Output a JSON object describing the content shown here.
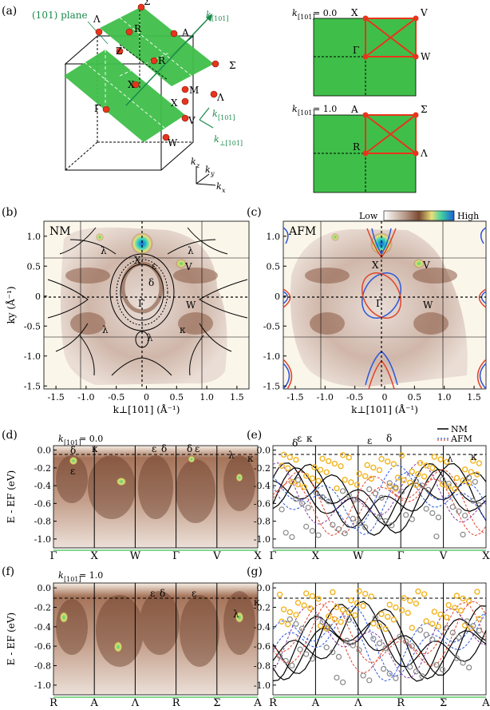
{
  "colors": {
    "green": "#3fbf4a",
    "red": "#e8341c",
    "arpes_dark": "#7a4a32",
    "arpes_bg": "#fbf6ea",
    "nm_line": "#000000",
    "afm_blue": "#2d58d8",
    "afm_red": "#e0442a",
    "afm_purple": "#8a3aa0",
    "orange_marker": "#f2b41e",
    "gray_marker": "#888888",
    "teal_text": "#1a8a6a"
  },
  "panels": {
    "a": {
      "label": "(a)",
      "plane_label": "(101) plane",
      "k101": "k",
      "k101_sub": "[101]",
      "kperp": "k",
      "kperp_sub": "⊥[101]",
      "kx": "k",
      "kx_sub": "x",
      "ky": "k",
      "ky_sub": "y",
      "kz": "k",
      "kz_sub": "z",
      "points": [
        "Σ",
        "Λ",
        "R",
        "A",
        "Z",
        "R",
        "Σ",
        "X",
        "M",
        "Γ",
        "X",
        "Λ",
        "V",
        "W"
      ],
      "slice0": {
        "title": "k",
        "sub": "[101]",
        "val": " = 0.0",
        "corners": [
          "X",
          "V",
          "Γ",
          "W"
        ]
      },
      "slice1": {
        "title": "k",
        "sub": "[101]",
        "val": " = 1.0",
        "corners": [
          "A",
          "Σ",
          "R",
          "Λ"
        ]
      }
    },
    "b": {
      "label": "(b)",
      "mode": "NM",
      "points": [
        "X",
        "V",
        "δ",
        "ε",
        "λ",
        "λ",
        "Γ",
        "W",
        "λ",
        "κ",
        "λ"
      ]
    },
    "c": {
      "label": "(c)",
      "mode": "AFM",
      "colorbar_low": "Low",
      "colorbar_high": "High",
      "points": [
        "X",
        "V",
        "Γ",
        "W"
      ]
    },
    "d": {
      "label": "(d)",
      "title": "k",
      "sub": "[101]",
      "val": " = 0.0",
      "labels": [
        "δ",
        "ε",
        "κ",
        "ε",
        "δ",
        "δ",
        "ε",
        "λ",
        "κ"
      ]
    },
    "e": {
      "label": "(e)",
      "legend_nm": "NM",
      "legend_afm": "AFM",
      "labels": [
        "δ",
        "ε",
        "κ",
        "ε",
        "δ",
        "λ",
        "κ"
      ]
    },
    "f": {
      "label": "(f)",
      "title": "k",
      "sub": "[101]",
      "val": " = 1.0",
      "labels": [
        "ε",
        "δ",
        "ε",
        "λ",
        "κ"
      ]
    },
    "g": {
      "label": "(g)"
    }
  },
  "chart_data": [
    {
      "type": "heatmap",
      "title": "NM",
      "xlabel": "k⊥[101] (Å⁻¹)",
      "ylabel": "ky (Å⁻¹)",
      "xlim": [
        -1.7,
        1.7
      ],
      "ylim": [
        -1.55,
        1.25
      ],
      "xticks": [
        "-1.5",
        "-1.0",
        "-0.5",
        "0",
        "0.5",
        "1.0",
        "1.5"
      ],
      "yticks": [
        "1.0",
        "0.5",
        "0",
        "-0.5",
        "-1.0",
        "-1.5"
      ]
    },
    {
      "type": "heatmap",
      "title": "AFM",
      "xlabel": "k⊥[101] (Å⁻¹)",
      "xlim": [
        -1.7,
        1.7
      ],
      "ylim": [
        -1.55,
        1.25
      ],
      "xticks": [
        "-1.5",
        "-1.0",
        "-0.5",
        "0",
        "0.5",
        "1.0",
        "1.5"
      ],
      "yticks": [
        "1.0",
        "0.5",
        "0",
        "-0.5",
        "-1.0",
        "-1.5"
      ]
    },
    {
      "type": "heatmap",
      "title": "k[101] = 0.0",
      "ylabel": "E - EF (eV)",
      "ylim": [
        -1.1,
        0.05
      ],
      "yticks": [
        "0.0",
        "-0.2",
        "-0.4",
        "-0.6",
        "-0.8",
        "-1.0"
      ],
      "path": [
        "Γ",
        "X",
        "W",
        "Γ",
        "V",
        "X"
      ]
    },
    {
      "type": "line",
      "ylim": [
        -1.1,
        0.05
      ],
      "yticks": [
        "0.0",
        "-0.2",
        "-0.4",
        "-0.6",
        "-0.8",
        "-1.0"
      ],
      "path": [
        "Γ",
        "X",
        "W",
        "Γ",
        "V",
        "X"
      ],
      "series": [
        {
          "name": "NM"
        },
        {
          "name": "AFM"
        }
      ]
    },
    {
      "type": "heatmap",
      "title": "k[101] = 1.0",
      "ylabel": "E - EF (eV)",
      "ylim": [
        -1.1,
        0.05
      ],
      "yticks": [
        "0.0",
        "-0.2",
        "-0.4",
        "-0.6",
        "-0.8",
        "-1.0"
      ],
      "path": [
        "R",
        "A",
        "Λ",
        "R",
        "Σ",
        "A"
      ]
    },
    {
      "type": "line",
      "ylim": [
        -1.1,
        0.05
      ],
      "yticks": [
        "0.0",
        "-0.2",
        "-0.4",
        "-0.6",
        "-0.8",
        "-1.0"
      ],
      "path": [
        "R",
        "A",
        "Λ",
        "R",
        "Σ",
        "A"
      ],
      "series": [
        {
          "name": "NM"
        },
        {
          "name": "AFM"
        }
      ]
    }
  ]
}
